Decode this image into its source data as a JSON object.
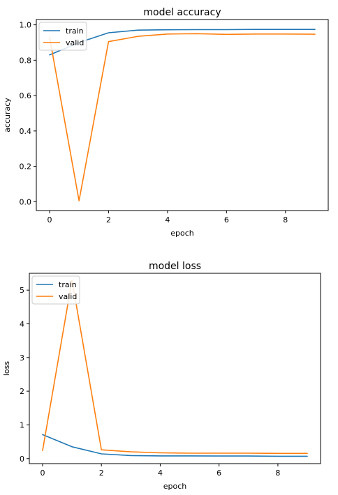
{
  "chart_data": [
    {
      "type": "line",
      "title": "model accuracy",
      "xlabel": "epoch",
      "ylabel": "accuracy",
      "x": [
        0,
        1,
        2,
        3,
        4,
        5,
        6,
        7,
        8,
        9
      ],
      "xticks": [
        0,
        2,
        4,
        6,
        8
      ],
      "yticks": [
        0.0,
        0.2,
        0.4,
        0.6,
        0.8,
        1.0
      ],
      "xtick_labels": [
        "0",
        "2",
        "4",
        "6",
        "8"
      ],
      "ytick_labels": [
        "0.0",
        "0.2",
        "0.4",
        "0.6",
        "0.8",
        "1.0"
      ],
      "xlim": [
        -0.45,
        9.45
      ],
      "ylim": [
        -0.05,
        1.03
      ],
      "legend_position": "upper left",
      "grid": false,
      "series": [
        {
          "name": "train",
          "color": "#1f77b4",
          "values": [
            0.83,
            0.9,
            0.955,
            0.97,
            0.972,
            0.973,
            0.973,
            0.974,
            0.974,
            0.974
          ]
        },
        {
          "name": "valid",
          "color": "#ff7f0e",
          "values": [
            0.93,
            0.005,
            0.905,
            0.935,
            0.948,
            0.95,
            0.946,
            0.948,
            0.948,
            0.947
          ]
        }
      ]
    },
    {
      "type": "line",
      "title": "model loss",
      "xlabel": "epoch",
      "ylabel": "loss",
      "x": [
        0,
        1,
        2,
        3,
        4,
        5,
        6,
        7,
        8,
        9
      ],
      "xticks": [
        0,
        2,
        4,
        6,
        8
      ],
      "yticks": [
        0,
        1,
        2,
        3,
        4,
        5
      ],
      "xtick_labels": [
        "0",
        "2",
        "4",
        "6",
        "8"
      ],
      "ytick_labels": [
        "0",
        "1",
        "2",
        "3",
        "4",
        "5"
      ],
      "xlim": [
        -0.45,
        9.45
      ],
      "ylim": [
        -0.15,
        5.5
      ],
      "legend_position": "upper left",
      "grid": false,
      "series": [
        {
          "name": "train",
          "color": "#1f77b4",
          "values": [
            0.71,
            0.35,
            0.14,
            0.09,
            0.08,
            0.08,
            0.075,
            0.075,
            0.07,
            0.07
          ]
        },
        {
          "name": "valid",
          "color": "#ff7f0e",
          "values": [
            0.24,
            5.3,
            0.26,
            0.2,
            0.17,
            0.16,
            0.16,
            0.16,
            0.155,
            0.155
          ]
        }
      ]
    }
  ]
}
